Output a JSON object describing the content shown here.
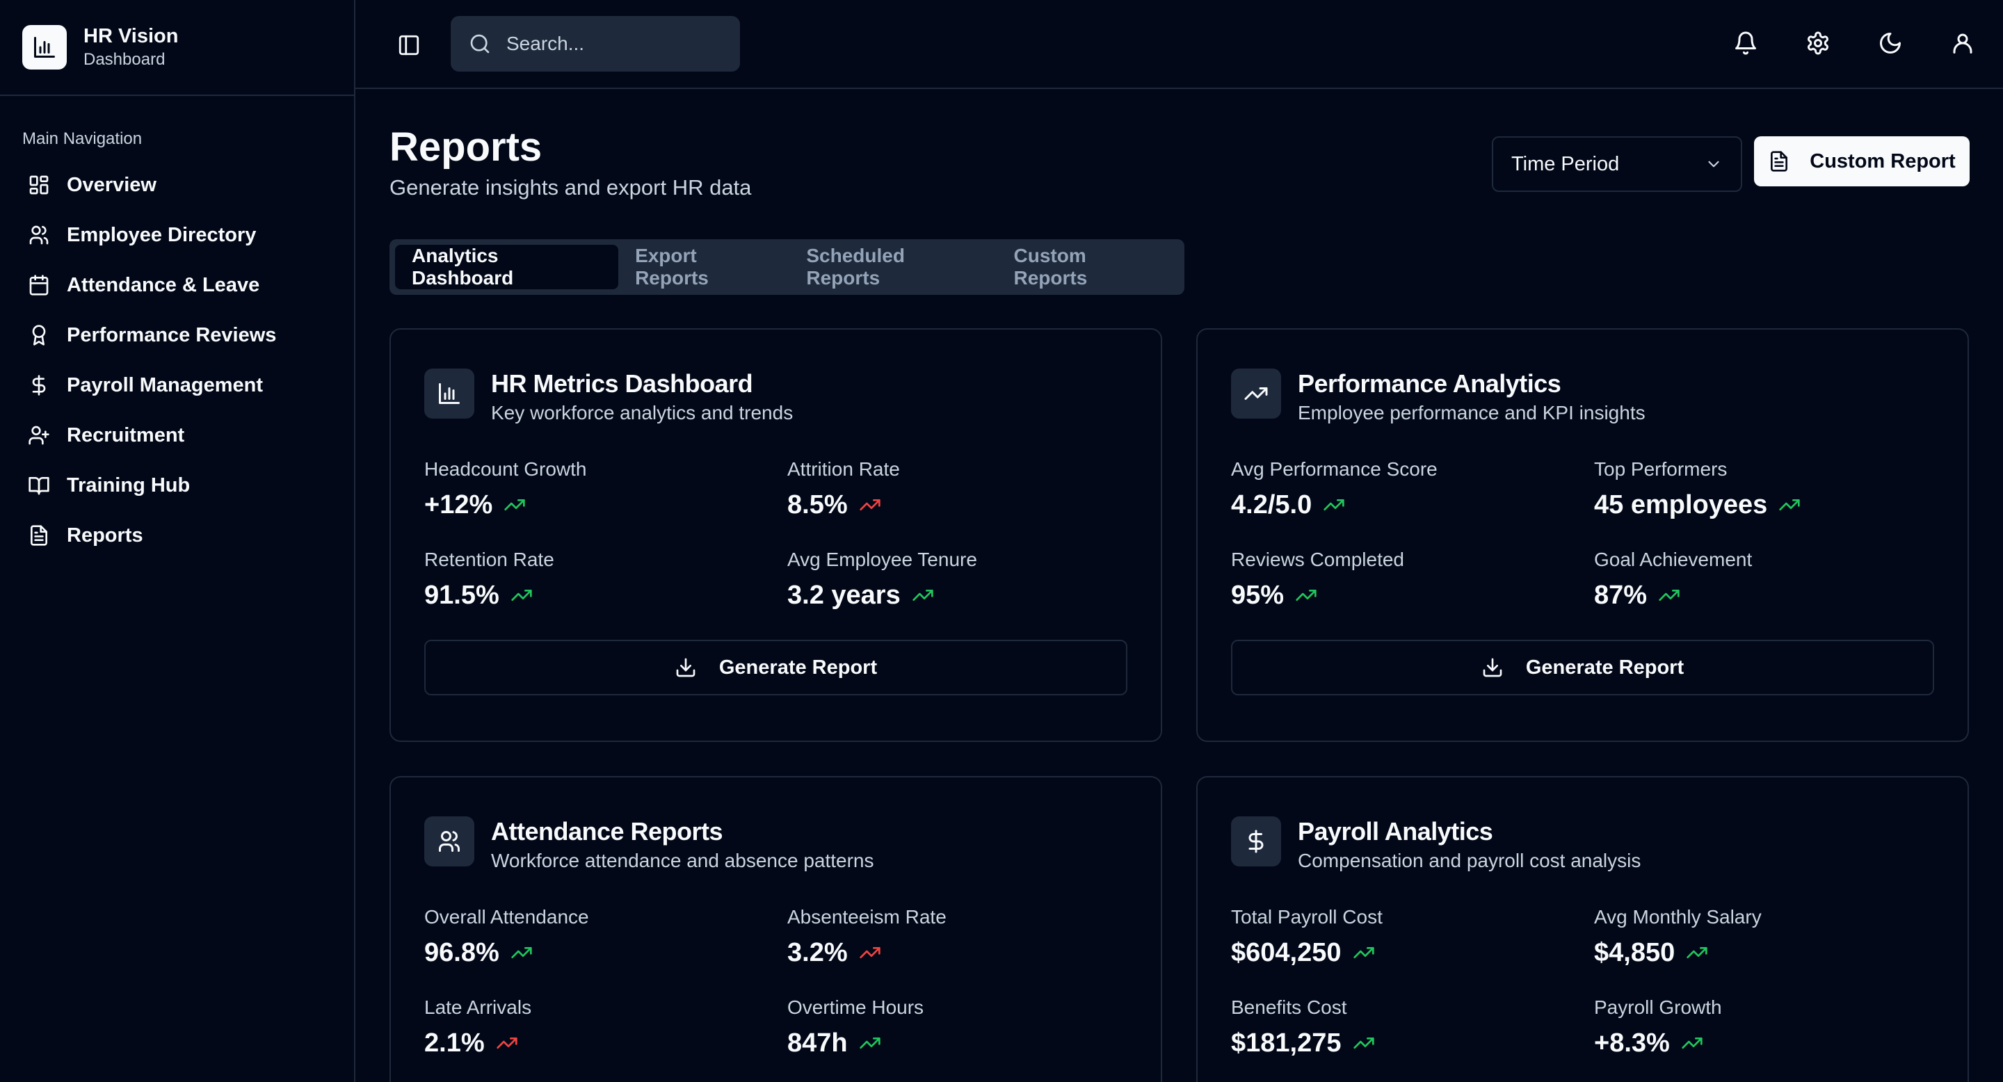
{
  "brand": {
    "name": "HR Vision",
    "subtitle": "Dashboard"
  },
  "sidebar": {
    "section_label": "Main Navigation",
    "items": [
      {
        "label": "Overview",
        "icon": "layout-grid-icon"
      },
      {
        "label": "Employee Directory",
        "icon": "users-icon"
      },
      {
        "label": "Attendance & Leave",
        "icon": "calendar-icon"
      },
      {
        "label": "Performance Reviews",
        "icon": "award-icon"
      },
      {
        "label": "Payroll Management",
        "icon": "dollar-icon"
      },
      {
        "label": "Recruitment",
        "icon": "user-plus-icon"
      },
      {
        "label": "Training Hub",
        "icon": "book-icon"
      },
      {
        "label": "Reports",
        "icon": "file-text-icon"
      }
    ]
  },
  "search": {
    "placeholder": "Search..."
  },
  "page": {
    "title": "Reports",
    "subtitle": "Generate insights and export HR data"
  },
  "controls": {
    "period_label": "Time Period",
    "custom_report_label": "Custom Report"
  },
  "tabs": [
    {
      "label": "Analytics Dashboard",
      "active": true
    },
    {
      "label": "Export Reports",
      "active": false
    },
    {
      "label": "Scheduled Reports",
      "active": false
    },
    {
      "label": "Custom Reports",
      "active": false
    }
  ],
  "colors": {
    "trend_up": "#22c55e",
    "trend_down": "#ef4444",
    "background": "#020817",
    "border": "#1e293b"
  },
  "cards": [
    {
      "title": "HR Metrics Dashboard",
      "subtitle": "Key workforce analytics and trends",
      "icon": "bar-chart-icon",
      "metrics": [
        {
          "label": "Headcount Growth",
          "value": "+12%",
          "trend": "up"
        },
        {
          "label": "Attrition Rate",
          "value": "8.5%",
          "trend": "down"
        },
        {
          "label": "Retention Rate",
          "value": "91.5%",
          "trend": "up"
        },
        {
          "label": "Avg Employee Tenure",
          "value": "3.2 years",
          "trend": "up"
        }
      ],
      "button": "Generate Report"
    },
    {
      "title": "Performance Analytics",
      "subtitle": "Employee performance and KPI insights",
      "icon": "trending-up-icon",
      "metrics": [
        {
          "label": "Avg Performance Score",
          "value": "4.2/5.0",
          "trend": "up"
        },
        {
          "label": "Top Performers",
          "value": "45 employees",
          "trend": "up"
        },
        {
          "label": "Reviews Completed",
          "value": "95%",
          "trend": "up"
        },
        {
          "label": "Goal Achievement",
          "value": "87%",
          "trend": "up"
        }
      ],
      "button": "Generate Report"
    },
    {
      "title": "Attendance Reports",
      "subtitle": "Workforce attendance and absence patterns",
      "icon": "users-icon",
      "metrics": [
        {
          "label": "Overall Attendance",
          "value": "96.8%",
          "trend": "up"
        },
        {
          "label": "Absenteeism Rate",
          "value": "3.2%",
          "trend": "down"
        },
        {
          "label": "Late Arrivals",
          "value": "2.1%",
          "trend": "down"
        },
        {
          "label": "Overtime Hours",
          "value": "847h",
          "trend": "up"
        }
      ]
    },
    {
      "title": "Payroll Analytics",
      "subtitle": "Compensation and payroll cost analysis",
      "icon": "dollar-icon",
      "metrics": [
        {
          "label": "Total Payroll Cost",
          "value": "$604,250",
          "trend": "up"
        },
        {
          "label": "Avg Monthly Salary",
          "value": "$4,850",
          "trend": "up"
        },
        {
          "label": "Benefits Cost",
          "value": "$181,275",
          "trend": "up"
        },
        {
          "label": "Payroll Growth",
          "value": "+8.3%",
          "trend": "up"
        }
      ]
    }
  ]
}
